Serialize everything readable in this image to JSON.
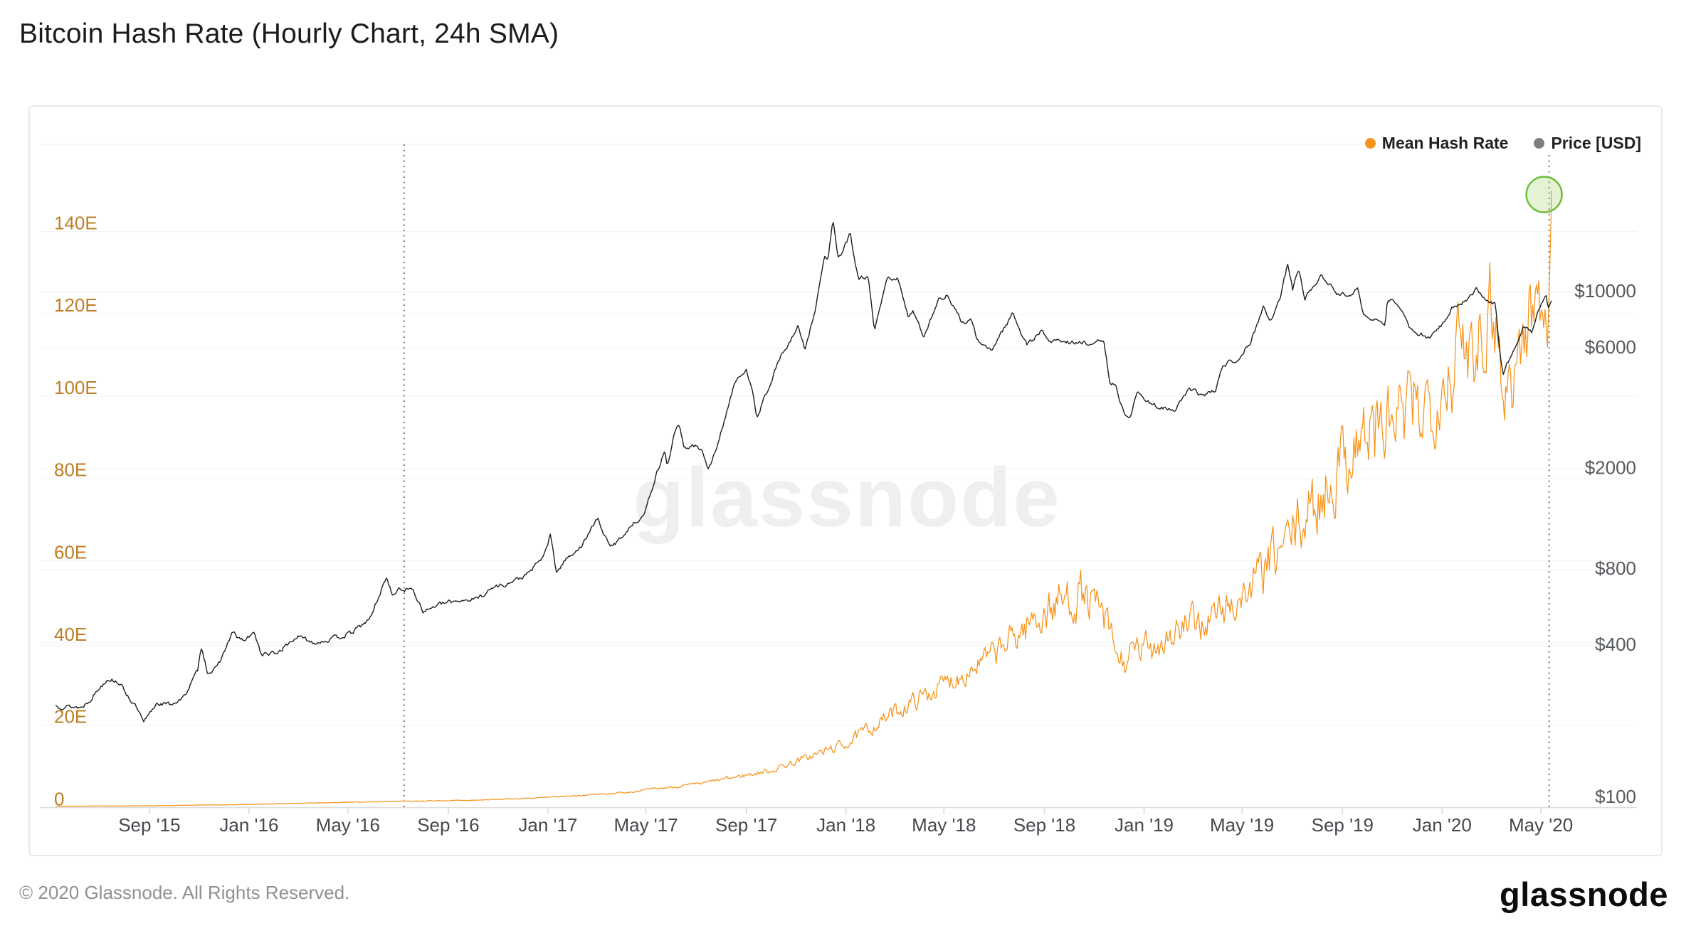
{
  "page": {
    "title": "Bitcoin Hash Rate (Hourly Chart, 24h SMA)",
    "watermark": "glassnode",
    "footer_copyright": "© 2020 Glassnode. All Rights Reserved.",
    "footer_logo": "glassnode"
  },
  "legend": [
    {
      "label": "Mean Hash Rate",
      "color": "#f7931a"
    },
    {
      "label": "Price [USD]",
      "color": "#7d7d7d"
    }
  ],
  "chart_data": {
    "type": "line",
    "title": "Bitcoin Hash Rate (Hourly Chart, 24h SMA)",
    "x_axis": {
      "start": "2015-05-09",
      "end": "2020-05-14",
      "ticks": [
        [
          "2015-09-01",
          "Sep '15"
        ],
        [
          "2016-01-01",
          "Jan '16"
        ],
        [
          "2016-05-01",
          "May '16"
        ],
        [
          "2016-09-01",
          "Sep '16"
        ],
        [
          "2017-01-01",
          "Jan '17"
        ],
        [
          "2017-05-01",
          "May '17"
        ],
        [
          "2017-09-01",
          "Sep '17"
        ],
        [
          "2018-01-01",
          "Jan '18"
        ],
        [
          "2018-05-01",
          "May '18"
        ],
        [
          "2018-09-01",
          "Sep '18"
        ],
        [
          "2019-01-01",
          "Jan '19"
        ],
        [
          "2019-05-01",
          "May '19"
        ],
        [
          "2019-09-01",
          "Sep '19"
        ],
        [
          "2020-01-01",
          "Jan '20"
        ],
        [
          "2020-05-01",
          "May '20"
        ]
      ]
    },
    "y_left": {
      "unit": "EH/s",
      "scale": "linear",
      "range": [
        0,
        161
      ],
      "label_color": "#bf7d26",
      "ticks": [
        [
          0,
          "0"
        ],
        [
          20,
          "20E"
        ],
        [
          40,
          "40E"
        ],
        [
          60,
          "60E"
        ],
        [
          80,
          "80E"
        ],
        [
          100,
          "100E"
        ],
        [
          120,
          "120E"
        ],
        [
          140,
          "140E"
        ]
      ]
    },
    "y_right": {
      "unit": "USD",
      "scale": "log",
      "label_color": "#54585c",
      "ticks": [
        [
          100,
          "$100"
        ],
        [
          400,
          "$400"
        ],
        [
          800,
          "$800"
        ],
        [
          2000,
          "$2000"
        ],
        [
          6000,
          "$6000"
        ],
        [
          10000,
          "$10000"
        ]
      ]
    },
    "series": [
      {
        "name": "Mean Hash Rate",
        "axis": "left",
        "color": "#f7931a",
        "seed": 7,
        "anchors": [
          [
            "2015-05-09",
            0.32,
            0.02
          ],
          [
            "2015-09-01",
            0.42,
            0.03
          ],
          [
            "2016-01-01",
            0.75,
            0.05
          ],
          [
            "2016-05-01",
            1.25,
            0.07
          ],
          [
            "2016-07-09",
            1.55,
            0.09
          ],
          [
            "2016-10-01",
            1.75,
            0.1
          ],
          [
            "2017-01-01",
            2.45,
            0.14
          ],
          [
            "2017-04-01",
            3.6,
            0.2
          ],
          [
            "2017-07-01",
            5.6,
            0.35
          ],
          [
            "2017-10-01",
            9.0,
            0.7
          ],
          [
            "2018-01-01",
            15.5,
            1.3
          ],
          [
            "2018-03-01",
            23,
            2.0
          ],
          [
            "2018-05-01",
            30,
            2.5
          ],
          [
            "2018-07-01",
            37,
            3.2
          ],
          [
            "2018-08-15",
            45,
            4.5
          ],
          [
            "2018-09-20",
            50,
            5.5
          ],
          [
            "2018-10-15",
            52,
            5.5
          ],
          [
            "2018-11-10",
            47,
            5
          ],
          [
            "2018-12-03",
            35,
            4
          ],
          [
            "2018-12-28",
            38,
            4
          ],
          [
            "2019-02-01",
            42,
            4.5
          ],
          [
            "2019-03-15",
            45,
            4.5
          ],
          [
            "2019-05-01",
            51,
            5
          ],
          [
            "2019-06-15",
            62,
            6.5
          ],
          [
            "2019-08-01",
            74,
            8
          ],
          [
            "2019-09-15",
            89,
            10
          ],
          [
            "2019-10-15",
            92,
            10.5
          ],
          [
            "2019-11-15",
            94,
            10.5
          ],
          [
            "2019-12-15",
            99,
            10.5
          ],
          [
            "2020-01-15",
            108,
            11.5
          ],
          [
            "2020-02-15",
            117,
            12
          ],
          [
            "2020-03-05",
            124,
            12.5
          ],
          [
            "2020-03-17",
            99,
            10
          ],
          [
            "2020-03-28",
            106,
            11
          ],
          [
            "2020-04-15",
            117,
            12
          ],
          [
            "2020-05-01",
            126,
            12
          ],
          [
            "2020-05-08",
            124,
            10
          ],
          [
            "2020-05-11",
            121,
            7
          ],
          [
            "2020-05-13",
            136,
            4
          ],
          [
            "2020-05-14",
            150,
            0.5
          ]
        ]
      },
      {
        "name": "Price [USD]",
        "axis": "right",
        "color": "#1d1d1f",
        "seed": 13,
        "anchors": [
          [
            "2015-05-09",
            232
          ],
          [
            "2015-06-10",
            228
          ],
          [
            "2015-06-20",
            245
          ],
          [
            "2015-07-12",
            298
          ],
          [
            "2015-07-25",
            288
          ],
          [
            "2015-08-18",
            222
          ],
          [
            "2015-08-25",
            197
          ],
          [
            "2015-09-10",
            238
          ],
          [
            "2015-09-25",
            234
          ],
          [
            "2015-10-12",
            247
          ],
          [
            "2015-10-30",
            318
          ],
          [
            "2015-11-04",
            400
          ],
          [
            "2015-11-11",
            315
          ],
          [
            "2015-11-22",
            323
          ],
          [
            "2015-12-12",
            452
          ],
          [
            "2015-12-18",
            430
          ],
          [
            "2015-12-26",
            418
          ],
          [
            "2016-01-08",
            448
          ],
          [
            "2016-01-16",
            370
          ],
          [
            "2016-02-03",
            372
          ],
          [
            "2016-02-29",
            435
          ],
          [
            "2016-03-20",
            412
          ],
          [
            "2016-04-12",
            425
          ],
          [
            "2016-05-05",
            448
          ],
          [
            "2016-05-28",
            510
          ],
          [
            "2016-06-13",
            690
          ],
          [
            "2016-06-17",
            755
          ],
          [
            "2016-06-24",
            635
          ],
          [
            "2016-07-04",
            670
          ],
          [
            "2016-07-20",
            665
          ],
          [
            "2016-08-02",
            545
          ],
          [
            "2016-08-16",
            575
          ],
          [
            "2016-09-12",
            605
          ],
          [
            "2016-10-05",
            612
          ],
          [
            "2016-10-28",
            685
          ],
          [
            "2016-11-14",
            705
          ],
          [
            "2016-12-05",
            758
          ],
          [
            "2016-12-22",
            860
          ],
          [
            "2016-12-30",
            962
          ],
          [
            "2017-01-04",
            1105
          ],
          [
            "2017-01-11",
            785
          ],
          [
            "2017-01-28",
            915
          ],
          [
            "2017-02-12",
            995
          ],
          [
            "2017-02-24",
            1175
          ],
          [
            "2017-03-03",
            1270
          ],
          [
            "2017-03-18",
            975
          ],
          [
            "2017-03-27",
            1035
          ],
          [
            "2017-04-13",
            1195
          ],
          [
            "2017-04-30",
            1340
          ],
          [
            "2017-05-10",
            1750
          ],
          [
            "2017-05-24",
            2380
          ],
          [
            "2017-05-27",
            2050
          ],
          [
            "2017-06-06",
            2850
          ],
          [
            "2017-06-11",
            2970
          ],
          [
            "2017-06-16",
            2440
          ],
          [
            "2017-06-30",
            2470
          ],
          [
            "2017-07-10",
            2340
          ],
          [
            "2017-07-16",
            1935
          ],
          [
            "2017-08-01",
            2780
          ],
          [
            "2017-08-17",
            4360
          ],
          [
            "2017-09-01",
            4880
          ],
          [
            "2017-09-08",
            4230
          ],
          [
            "2017-09-14",
            3220
          ],
          [
            "2017-09-30",
            4340
          ],
          [
            "2017-10-13",
            5620
          ],
          [
            "2017-10-21",
            6030
          ],
          [
            "2017-11-03",
            7270
          ],
          [
            "2017-11-12",
            5920
          ],
          [
            "2017-11-25",
            8750
          ],
          [
            "2017-12-06",
            13900
          ],
          [
            "2017-12-10",
            13450
          ],
          [
            "2017-12-16",
            19350
          ],
          [
            "2017-12-22",
            13850
          ],
          [
            "2017-12-28",
            14400
          ],
          [
            "2018-01-06",
            16950
          ],
          [
            "2018-01-16",
            11300
          ],
          [
            "2018-01-28",
            11550
          ],
          [
            "2018-02-05",
            6950
          ],
          [
            "2018-02-20",
            11250
          ],
          [
            "2018-03-05",
            11450
          ],
          [
            "2018-03-18",
            7950
          ],
          [
            "2018-03-24",
            8550
          ],
          [
            "2018-04-06",
            6700
          ],
          [
            "2018-04-24",
            9280
          ],
          [
            "2018-05-05",
            9750
          ],
          [
            "2018-05-23",
            7580
          ],
          [
            "2018-06-03",
            7680
          ],
          [
            "2018-06-13",
            6280
          ],
          [
            "2018-06-28",
            5880
          ],
          [
            "2018-07-08",
            6720
          ],
          [
            "2018-07-24",
            8280
          ],
          [
            "2018-08-11",
            6150
          ],
          [
            "2018-08-28",
            7080
          ],
          [
            "2018-09-06",
            6420
          ],
          [
            "2018-09-25",
            6430
          ],
          [
            "2018-10-11",
            6270
          ],
          [
            "2018-10-30",
            6330
          ],
          [
            "2018-11-13",
            6340
          ],
          [
            "2018-11-20",
            4480
          ],
          [
            "2018-11-28",
            4180
          ],
          [
            "2018-12-07",
            3360
          ],
          [
            "2018-12-15",
            3195
          ],
          [
            "2018-12-24",
            4020
          ],
          [
            "2019-01-10",
            3630
          ],
          [
            "2019-01-28",
            3440
          ],
          [
            "2019-02-08",
            3400
          ],
          [
            "2019-02-24",
            4110
          ],
          [
            "2019-03-15",
            3920
          ],
          [
            "2019-03-30",
            4100
          ],
          [
            "2019-04-08",
            5180
          ],
          [
            "2019-04-25",
            5430
          ],
          [
            "2019-05-11",
            6340
          ],
          [
            "2019-05-27",
            8720
          ],
          [
            "2019-06-04",
            7680
          ],
          [
            "2019-06-16",
            9300
          ],
          [
            "2019-06-26",
            12900
          ],
          [
            "2019-07-02",
            10200
          ],
          [
            "2019-07-09",
            12500
          ],
          [
            "2019-07-17",
            9450
          ],
          [
            "2019-08-05",
            11750
          ],
          [
            "2019-08-28",
            9680
          ],
          [
            "2019-09-20",
            10150
          ],
          [
            "2019-09-26",
            8090
          ],
          [
            "2019-10-06",
            7880
          ],
          [
            "2019-10-23",
            7500
          ],
          [
            "2019-10-26",
            9250
          ],
          [
            "2019-11-07",
            9180
          ],
          [
            "2019-11-24",
            7020
          ],
          [
            "2019-12-17",
            6640
          ],
          [
            "2019-12-30",
            7290
          ],
          [
            "2020-01-14",
            8770
          ],
          [
            "2020-01-31",
            9320
          ],
          [
            "2020-02-12",
            10290
          ],
          [
            "2020-02-25",
            9310
          ],
          [
            "2020-03-06",
            9050
          ],
          [
            "2020-03-12",
            5650
          ],
          [
            "2020-03-16",
            4830
          ],
          [
            "2020-03-29",
            5960
          ],
          [
            "2020-04-09",
            7290
          ],
          [
            "2020-04-20",
            6890
          ],
          [
            "2020-04-30",
            8700
          ],
          [
            "2020-05-07",
            9960
          ],
          [
            "2020-05-10",
            8680
          ],
          [
            "2020-05-14",
            9250
          ]
        ]
      }
    ],
    "annotations": {
      "halving_lines": [
        "2016-07-09",
        "2020-05-11"
      ],
      "highlight": {
        "date": "2020-05-11",
        "value_eh": 149,
        "radius": 25,
        "stroke": "#6ebe3b",
        "fill": "#8dc63f"
      }
    },
    "grid": {
      "color": "#f2f2f3",
      "axis_color": "#dddddd",
      "tick_color": "#d6d6d8",
      "halving_color": "#4c4c4c"
    }
  }
}
